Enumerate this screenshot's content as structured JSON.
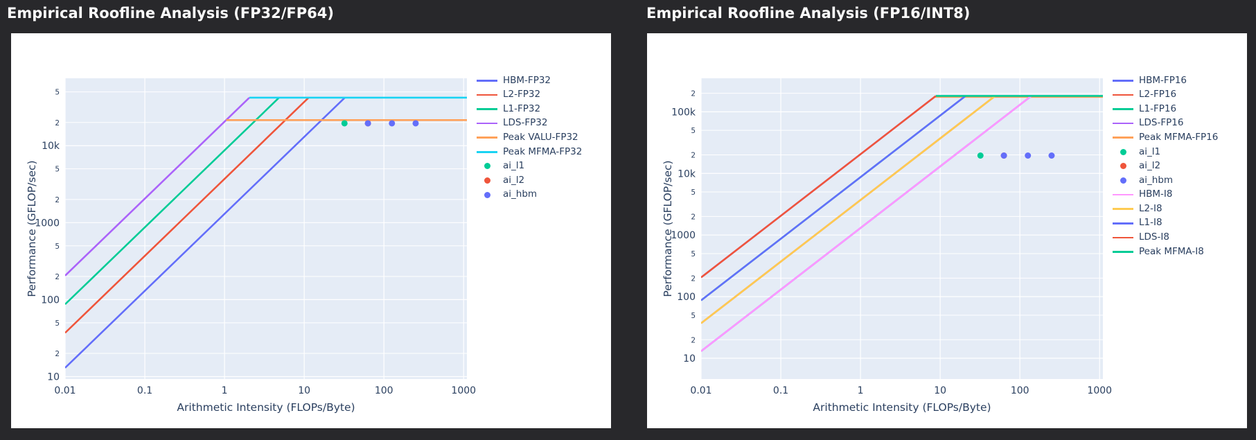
{
  "page": {
    "background": "#28282b"
  },
  "palette": {
    "plot_background": "#E5ECF6",
    "grid": "#ffffff",
    "text": "#2a3f5f",
    "title_text": "#fafafa",
    "card": "#ffffff"
  },
  "charts": [
    {
      "title": "Empirical Roofline Analysis (FP32/FP64)",
      "xlabel": "Arithmetic Intensity (FLOPs/Byte)",
      "ylabel": "Performance (GFLOP/sec)",
      "legend": [
        {
          "label": "HBM-FP32",
          "color": "#636EFA",
          "glyph": "line"
        },
        {
          "label": "L2-FP32",
          "color": "#EF553B",
          "glyph": "line"
        },
        {
          "label": "L1-FP32",
          "color": "#00CC96",
          "glyph": "line"
        },
        {
          "label": "LDS-FP32",
          "color": "#AB63FA",
          "glyph": "line"
        },
        {
          "label": "Peak VALU-FP32",
          "color": "#FFA15A",
          "glyph": "line"
        },
        {
          "label": "Peak MFMA-FP32",
          "color": "#19D3F3",
          "glyph": "line"
        },
        {
          "label": "ai_l1",
          "color": "#00CC96",
          "glyph": "dot"
        },
        {
          "label": "ai_l2",
          "color": "#EF553B",
          "glyph": "dot"
        },
        {
          "label": "ai_hbm",
          "color": "#636EFA",
          "glyph": "dot"
        }
      ],
      "chart_data": {
        "type": "line",
        "log_x": true,
        "log_y": true,
        "grid": true,
        "legend_position": "right",
        "xlim": [
          0.01,
          1100
        ],
        "ylim": [
          9.3,
          75000
        ],
        "x_ticks": [
          {
            "v": 0.01,
            "l": "0.01"
          },
          {
            "v": 0.1,
            "l": "0.1"
          },
          {
            "v": 1,
            "l": "1"
          },
          {
            "v": 10,
            "l": "10"
          },
          {
            "v": 100,
            "l": "100"
          },
          {
            "v": 1000,
            "l": "1000"
          }
        ],
        "y_ticks": [
          {
            "v": 10,
            "l": "10",
            "major": true
          },
          {
            "v": 20,
            "l": "2"
          },
          {
            "v": 50,
            "l": "5"
          },
          {
            "v": 100,
            "l": "100",
            "major": true
          },
          {
            "v": 200,
            "l": "2"
          },
          {
            "v": 500,
            "l": "5"
          },
          {
            "v": 1000,
            "l": "1000",
            "major": true
          },
          {
            "v": 2000,
            "l": "2"
          },
          {
            "v": 5000,
            "l": "5"
          },
          {
            "v": 10000,
            "l": "10k",
            "major": true
          },
          {
            "v": 20000,
            "l": "2"
          },
          {
            "v": 50000,
            "l": "5"
          }
        ],
        "series": [
          {
            "label": "HBM-FP32",
            "color": "#636EFA",
            "kind": "bandwidth",
            "bandwidth_gb_s": 1300,
            "x_start": 0.01,
            "cap_gflops": 42000
          },
          {
            "label": "L2-FP32",
            "color": "#EF553B",
            "kind": "bandwidth",
            "bandwidth_gb_s": 3700,
            "x_start": 0.01,
            "cap_gflops": 42000
          },
          {
            "label": "L1-FP32",
            "color": "#00CC96",
            "kind": "bandwidth",
            "bandwidth_gb_s": 8700,
            "x_start": 0.01,
            "cap_gflops": 42000
          },
          {
            "label": "LDS-FP32",
            "color": "#AB63FA",
            "kind": "bandwidth",
            "bandwidth_gb_s": 20500,
            "x_start": 0.01,
            "cap_gflops": 42000
          },
          {
            "label": "Peak VALU-FP32",
            "color": "#FFA15A",
            "kind": "roof",
            "gflops": 21500,
            "x_start": 1.05
          },
          {
            "label": "Peak MFMA-FP32",
            "color": "#19D3F3",
            "kind": "roof",
            "gflops": 42000,
            "x_start": 2.05
          }
        ],
        "points": [
          {
            "label": "ai_l1",
            "color": "#00CC96",
            "x": 32,
            "y": 19500
          },
          {
            "label": "ai_l2",
            "color": "#EF553B",
            "x": 63,
            "y": 19500
          },
          {
            "label": "ai_hbm",
            "color": "#636EFA",
            "x": 63,
            "y": 19500
          },
          {
            "label": "ai_hbm",
            "color": "#636EFA",
            "x": 126,
            "y": 19500
          },
          {
            "label": "ai_hbm",
            "color": "#636EFA",
            "x": 250,
            "y": 19500
          }
        ]
      }
    },
    {
      "title": "Empirical Roofline Analysis (FP16/INT8)",
      "xlabel": "Arithmetic Intensity (FLOPs/Byte)",
      "ylabel": "Performance (GFLOP/sec)",
      "legend": [
        {
          "label": "HBM-FP16",
          "color": "#636EFA",
          "glyph": "line"
        },
        {
          "label": "L2-FP16",
          "color": "#EF553B",
          "glyph": "line"
        },
        {
          "label": "L1-FP16",
          "color": "#00CC96",
          "glyph": "line"
        },
        {
          "label": "LDS-FP16",
          "color": "#AB63FA",
          "glyph": "line"
        },
        {
          "label": "Peak MFMA-FP16",
          "color": "#FFA15A",
          "glyph": "line"
        },
        {
          "label": "ai_l1",
          "color": "#00CC96",
          "glyph": "dot"
        },
        {
          "label": "ai_l2",
          "color": "#EF553B",
          "glyph": "dot"
        },
        {
          "label": "ai_hbm",
          "color": "#636EFA",
          "glyph": "dot"
        },
        {
          "label": "HBM-I8",
          "color": "#FF97FF",
          "glyph": "line"
        },
        {
          "label": "L2-I8",
          "color": "#FECB52",
          "glyph": "line"
        },
        {
          "label": "L1-I8",
          "color": "#636EFA",
          "glyph": "line"
        },
        {
          "label": "LDS-I8",
          "color": "#EF553B",
          "glyph": "line"
        },
        {
          "label": "Peak MFMA-I8",
          "color": "#00CC96",
          "glyph": "line"
        }
      ],
      "chart_data": {
        "type": "line",
        "log_x": true,
        "log_y": true,
        "grid": true,
        "legend_position": "right",
        "xlim": [
          0.01,
          1100
        ],
        "ylim": [
          4.6,
          350000
        ],
        "x_ticks": [
          {
            "v": 0.01,
            "l": "0.01"
          },
          {
            "v": 0.1,
            "l": "0.1"
          },
          {
            "v": 1,
            "l": "1"
          },
          {
            "v": 10,
            "l": "10"
          },
          {
            "v": 100,
            "l": "100"
          },
          {
            "v": 1000,
            "l": "1000"
          }
        ],
        "y_ticks": [
          {
            "v": 10,
            "l": "10",
            "major": true
          },
          {
            "v": 20,
            "l": "2"
          },
          {
            "v": 50,
            "l": "5"
          },
          {
            "v": 100,
            "l": "100",
            "major": true
          },
          {
            "v": 200,
            "l": "2"
          },
          {
            "v": 500,
            "l": "5"
          },
          {
            "v": 1000,
            "l": "1000",
            "major": true
          },
          {
            "v": 2000,
            "l": "2"
          },
          {
            "v": 5000,
            "l": "5"
          },
          {
            "v": 10000,
            "l": "10k",
            "major": true
          },
          {
            "v": 20000,
            "l": "2"
          },
          {
            "v": 50000,
            "l": "5"
          },
          {
            "v": 100000,
            "l": "100k",
            "major": true
          },
          {
            "v": 200000,
            "l": "2"
          }
        ],
        "series": [
          {
            "label": "HBM-FP16",
            "color": "#636EFA",
            "kind": "bandwidth",
            "bandwidth_gb_s": 1300,
            "x_start": 0.01,
            "cap_gflops": 175000
          },
          {
            "label": "L2-FP16",
            "color": "#EF553B",
            "kind": "bandwidth",
            "bandwidth_gb_s": 3700,
            "x_start": 0.01,
            "cap_gflops": 175000
          },
          {
            "label": "L1-FP16",
            "color": "#00CC96",
            "kind": "bandwidth",
            "bandwidth_gb_s": 8700,
            "x_start": 0.01,
            "cap_gflops": 175000
          },
          {
            "label": "LDS-FP16",
            "color": "#AB63FA",
            "kind": "bandwidth",
            "bandwidth_gb_s": 20500,
            "x_start": 0.01,
            "cap_gflops": 175000
          },
          {
            "label": "Peak MFMA-FP16",
            "color": "#FFA15A",
            "kind": "roof",
            "gflops": 175000,
            "x_start": 8.54
          },
          {
            "label": "HBM-I8",
            "color": "#FF97FF",
            "kind": "bandwidth",
            "bandwidth_gb_s": 1300,
            "x_start": 0.01,
            "cap_gflops": 181000
          },
          {
            "label": "L2-I8",
            "color": "#FECB52",
            "kind": "bandwidth",
            "bandwidth_gb_s": 3700,
            "x_start": 0.01,
            "cap_gflops": 181000
          },
          {
            "label": "L1-I8",
            "color": "#636EFA",
            "kind": "bandwidth",
            "bandwidth_gb_s": 8700,
            "x_start": 0.01,
            "cap_gflops": 181000
          },
          {
            "label": "LDS-I8",
            "color": "#EF553B",
            "kind": "bandwidth",
            "bandwidth_gb_s": 20500,
            "x_start": 0.01,
            "cap_gflops": 181000
          },
          {
            "label": "Peak MFMA-I8",
            "color": "#00CC96",
            "kind": "roof",
            "gflops": 181000,
            "x_start": 8.83
          }
        ],
        "points": [
          {
            "label": "ai_l1",
            "color": "#00CC96",
            "x": 32,
            "y": 19500
          },
          {
            "label": "ai_l2",
            "color": "#EF553B",
            "x": 63,
            "y": 19500
          },
          {
            "label": "ai_hbm",
            "color": "#636EFA",
            "x": 63,
            "y": 19500
          },
          {
            "label": "ai_hbm",
            "color": "#636EFA",
            "x": 126,
            "y": 19500
          },
          {
            "label": "ai_hbm",
            "color": "#636EFA",
            "x": 250,
            "y": 19500
          }
        ]
      }
    }
  ]
}
